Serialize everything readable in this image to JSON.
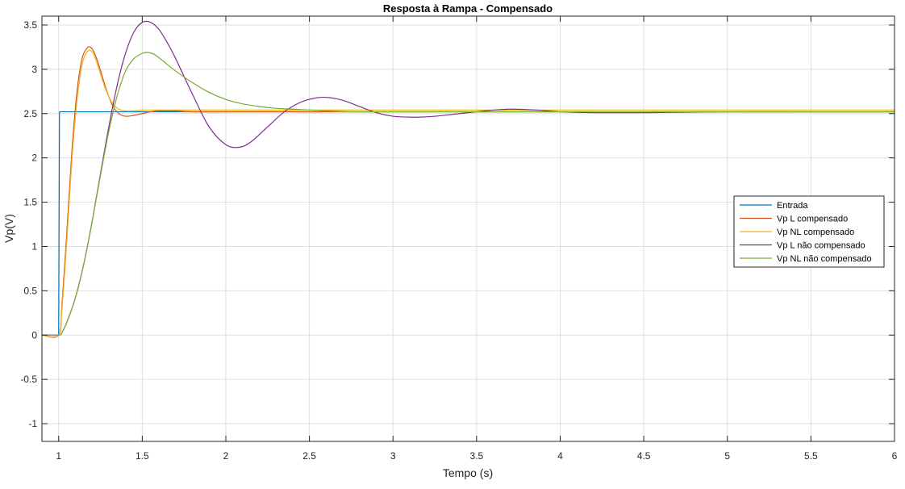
{
  "chart_data": {
    "type": "line",
    "title": "Resposta à Rampa - Compensado",
    "xlabel": "Tempo (s)",
    "ylabel": "Vp(V)",
    "xlim": [
      0.9,
      6
    ],
    "ylim": [
      -1.2,
      3.6
    ],
    "xticks": [
      1,
      1.5,
      2,
      2.5,
      3,
      3.5,
      4,
      4.5,
      5,
      5.5,
      6
    ],
    "xtick_labels": [
      "1",
      "1.5",
      "2",
      "2.5",
      "3",
      "3.5",
      "4",
      "4.5",
      "5",
      "5.5",
      "6"
    ],
    "yticks": [
      -1,
      -0.5,
      0,
      0.5,
      1,
      1.5,
      2,
      2.5,
      3,
      3.5
    ],
    "ytick_labels": [
      "-1",
      "-0.5",
      "0",
      "0.5",
      "1",
      "1.5",
      "2",
      "2.5",
      "3",
      "3.5"
    ],
    "grid": true,
    "legend_position": "right",
    "series": [
      {
        "name": "Entrada",
        "color": "#0072BD",
        "x": [
          0.9,
          0.99,
          1.0,
          1.005,
          1.5,
          2.0,
          3.0,
          4.0,
          5.0,
          6.0
        ],
        "y": [
          0,
          0,
          0,
          2.52,
          2.52,
          2.52,
          2.52,
          2.52,
          2.52,
          2.52
        ]
      },
      {
        "name": "Vp L compensado",
        "color": "#D95319",
        "x": [
          0.9,
          1.0,
          1.02,
          1.05,
          1.08,
          1.11,
          1.14,
          1.17,
          1.19,
          1.21,
          1.24,
          1.28,
          1.32,
          1.36,
          1.4,
          1.45,
          1.5,
          1.55,
          1.6,
          1.7,
          1.8,
          2.0,
          2.5,
          3.0,
          4.0,
          5.0,
          6.0
        ],
        "y": [
          0,
          0,
          0.35,
          1.2,
          2.1,
          2.75,
          3.12,
          3.24,
          3.25,
          3.2,
          3.05,
          2.8,
          2.6,
          2.5,
          2.47,
          2.48,
          2.5,
          2.52,
          2.53,
          2.53,
          2.52,
          2.52,
          2.52,
          2.52,
          2.52,
          2.52,
          2.52
        ]
      },
      {
        "name": "Vp NL compensado",
        "color": "#EDB120",
        "x": [
          0.9,
          1.0,
          1.02,
          1.05,
          1.08,
          1.11,
          1.14,
          1.17,
          1.2,
          1.22,
          1.25,
          1.28,
          1.32,
          1.36,
          1.4,
          1.45,
          1.5,
          1.6,
          1.8,
          2.0,
          2.5,
          3.0,
          4.0,
          5.0,
          6.0
        ],
        "y": [
          0,
          0,
          0.3,
          1.1,
          2.0,
          2.65,
          3.05,
          3.2,
          3.2,
          3.12,
          2.95,
          2.78,
          2.62,
          2.55,
          2.53,
          2.53,
          2.54,
          2.54,
          2.54,
          2.54,
          2.54,
          2.54,
          2.54,
          2.54,
          2.54
        ]
      },
      {
        "name": "Vp L não compensado",
        "color": "#7E2F8E",
        "x": [
          0.9,
          1.0,
          1.02,
          1.05,
          1.1,
          1.15,
          1.2,
          1.25,
          1.3,
          1.35,
          1.4,
          1.45,
          1.5,
          1.55,
          1.6,
          1.65,
          1.7,
          1.8,
          1.9,
          2.0,
          2.08,
          2.15,
          2.25,
          2.35,
          2.45,
          2.55,
          2.62,
          2.7,
          2.8,
          2.9,
          3.0,
          3.1,
          3.16,
          3.25,
          3.4,
          3.55,
          3.7,
          3.85,
          4.0,
          4.2,
          4.5,
          5.0,
          5.5,
          6.0
        ],
        "y": [
          0,
          0,
          0.03,
          0.15,
          0.42,
          0.8,
          1.28,
          1.82,
          2.35,
          2.82,
          3.18,
          3.42,
          3.53,
          3.53,
          3.45,
          3.3,
          3.12,
          2.72,
          2.35,
          2.15,
          2.12,
          2.18,
          2.35,
          2.52,
          2.63,
          2.68,
          2.68,
          2.65,
          2.58,
          2.51,
          2.47,
          2.46,
          2.46,
          2.47,
          2.5,
          2.53,
          2.55,
          2.54,
          2.52,
          2.51,
          2.51,
          2.52,
          2.52,
          2.52
        ]
      },
      {
        "name": "Vp NL não compensado",
        "color": "#77AC30",
        "x": [
          0.9,
          1.0,
          1.02,
          1.05,
          1.1,
          1.15,
          1.2,
          1.25,
          1.3,
          1.35,
          1.4,
          1.45,
          1.5,
          1.53,
          1.57,
          1.62,
          1.7,
          1.8,
          1.9,
          2.0,
          2.1,
          2.2,
          2.3,
          2.4,
          2.5,
          2.6,
          2.8,
          3.0,
          3.5,
          4.0,
          5.0,
          6.0
        ],
        "y": [
          0,
          0,
          0.03,
          0.15,
          0.42,
          0.8,
          1.28,
          1.8,
          2.3,
          2.7,
          2.98,
          3.12,
          3.18,
          3.19,
          3.17,
          3.1,
          2.98,
          2.85,
          2.74,
          2.66,
          2.61,
          2.58,
          2.56,
          2.55,
          2.54,
          2.53,
          2.52,
          2.52,
          2.52,
          2.52,
          2.52,
          2.52
        ]
      }
    ]
  }
}
